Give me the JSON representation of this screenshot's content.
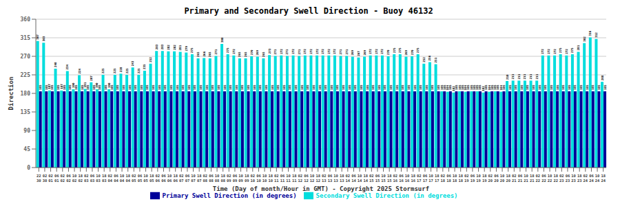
{
  "chart_data": {
    "type": "bar",
    "title": "Primary and Secondary Swell Direction - Buoy 46132",
    "x_label": "Time (Day of month/Hour in GMT) - Copyright 2025 Stormsurf",
    "y_label": "Direction",
    "categories": [
      "22\n30",
      "02\n30",
      "02\n01",
      "06\n01",
      "02\n02",
      "06\n02",
      "10\n02",
      "18\n02",
      "02\n03",
      "06\n03",
      "10\n03",
      "18\n03",
      "02\n04",
      "06\n04",
      "10\n04",
      "18\n04",
      "02\n05",
      "06\n05",
      "10\n05",
      "18\n05",
      "02\n06",
      "06\n06",
      "10\n06",
      "18\n06",
      "02\n07",
      "06\n07",
      "10\n07",
      "18\n07",
      "02\n08",
      "06\n08",
      "10\n08",
      "18\n08",
      "02\n09",
      "06\n09",
      "10\n09",
      "18\n09",
      "02\n10",
      "06\n10",
      "10\n10",
      "18\n10",
      "02\n11",
      "06\n11",
      "10\n11",
      "18\n11",
      "02\n12",
      "06\n12",
      "10\n12",
      "18\n12",
      "02\n13",
      "06\n13",
      "10\n13",
      "18\n13",
      "02\n14",
      "06\n14",
      "10\n14",
      "18\n14",
      "02\n15",
      "06\n15",
      "10\n15",
      "18\n15",
      "02\n16",
      "06\n16",
      "10\n16",
      "18\n16",
      "02\n17",
      "06\n17",
      "10\n17",
      "18\n17",
      "02\n18",
      "06\n18",
      "10\n18",
      "18\n18",
      "02\n19",
      "06\n19",
      "10\n19",
      "18\n19",
      "02\n20",
      "06\n20",
      "10\n20",
      "18\n20",
      "02\n21",
      "06\n21",
      "10\n21",
      "18\n21",
      "02\n22",
      "06\n22",
      "10\n22",
      "18\n22",
      "02\n23",
      "06\n23",
      "10\n23",
      "18\n23",
      "02\n24",
      "06\n24",
      "10\n24",
      "18\n24"
    ],
    "series": [
      {
        "name": "Secondary Swell Direction (in degrees)",
        "color": "#00DDDD",
        "values": [
          307,
          303,
          187,
          240,
          187,
          234,
          190,
          224,
          191,
          207,
          190,
          225,
          190,
          225,
          228,
          225,
          243,
          225,
          235,
          252,
          283,
          283,
          282,
          282,
          281,
          279,
          275,
          265,
          266,
          265,
          271,
          300,
          275,
          272,
          265,
          265,
          270,
          269,
          265,
          273,
          271,
          272,
          271,
          272,
          271,
          272,
          272,
          272,
          272,
          272,
          272,
          271,
          271,
          269,
          267,
          269,
          272,
          272,
          272,
          270,
          275,
          275,
          269,
          270,
          275,
          252,
          256,
          251,
          185,
          184,
          182,
          185,
          184,
          185,
          185,
          182,
          184,
          185,
          184,
          210,
          211,
          211,
          211,
          211,
          211,
          272,
          272,
          272,
          275,
          272,
          275,
          281,
          302,
          316,
          312,
          208
        ]
      },
      {
        "name": "Primary Swell Direction (in degrees)",
        "color": "#000099",
        "values": [
          185,
          185,
          185,
          185,
          185,
          185,
          185,
          185,
          185,
          185,
          185,
          185,
          185,
          185,
          185,
          185,
          185,
          185,
          185,
          185,
          185,
          185,
          185,
          185,
          185,
          185,
          185,
          185,
          185,
          185,
          185,
          185,
          185,
          185,
          185,
          185,
          185,
          185,
          185,
          185,
          185,
          185,
          185,
          185,
          185,
          185,
          185,
          185,
          185,
          185,
          185,
          185,
          185,
          185,
          185,
          185,
          185,
          185,
          185,
          185,
          185,
          185,
          185,
          185,
          185,
          185,
          185,
          185,
          185,
          185,
          185,
          185,
          185,
          185,
          185,
          185,
          185,
          185,
          185,
          185,
          185,
          185,
          185,
          185,
          185,
          185,
          185,
          185,
          185,
          185,
          185,
          185,
          185,
          185,
          185,
          185
        ]
      }
    ],
    "ylim": [
      0,
      360
    ],
    "yticks": [
      0,
      45,
      90,
      135,
      180,
      225,
      270,
      315,
      360
    ],
    "grid": true,
    "data_labels": true
  }
}
